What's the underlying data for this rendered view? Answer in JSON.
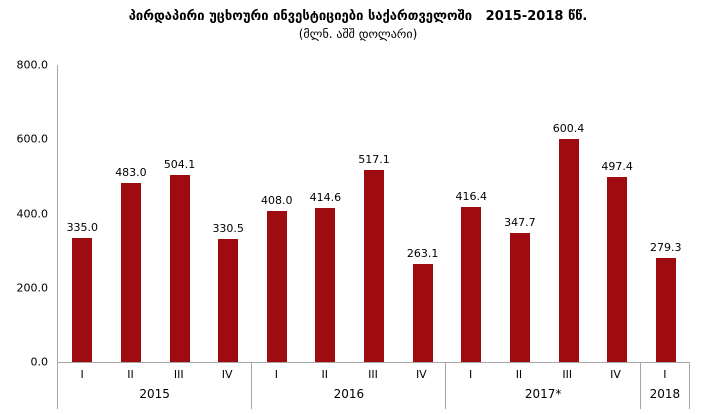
{
  "chart_data": {
    "type": "bar",
    "title": "პირდაპირი უცხოური ინვესტიციები საქართველოში   2015-2018 წწ.",
    "subtitle": "(მლნ. აშშ დოლარი)",
    "bar_color": "#9E0B10",
    "axis_color": "#A6A6A6",
    "text_color": "#000000",
    "background_color": "#FFFFFF",
    "grid": false,
    "legend": "none",
    "value_labels_shown": true,
    "value_label_decimals": 1,
    "ylim": [
      0,
      800
    ],
    "ytick_labels": [
      "800.0",
      "600.0",
      "400.0",
      "200.0",
      "0.0"
    ],
    "xlabel": "",
    "ylabel": "",
    "groups": [
      {
        "year": "2015",
        "quarters": [
          "I",
          "II",
          "III",
          "IV"
        ],
        "values": [
          335.0,
          483.0,
          504.1,
          330.5
        ]
      },
      {
        "year": "2016",
        "quarters": [
          "I",
          "II",
          "III",
          "IV"
        ],
        "values": [
          408.0,
          414.6,
          517.1,
          263.1
        ]
      },
      {
        "year": "2017*",
        "quarters": [
          "I",
          "II",
          "III",
          "IV"
        ],
        "values": [
          416.4,
          347.7,
          600.4,
          497.4
        ]
      },
      {
        "year": "2018",
        "quarters": [
          "I"
        ],
        "values": [
          279.3
        ]
      }
    ]
  }
}
